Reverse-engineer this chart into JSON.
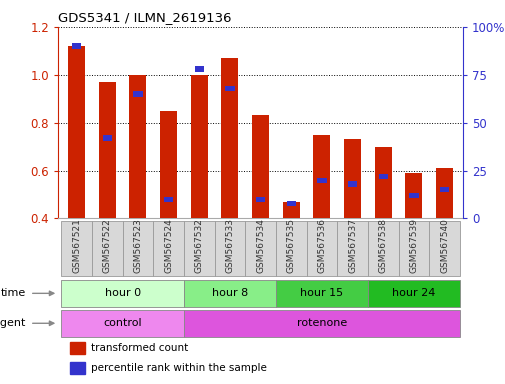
{
  "title": "GDS5341 / ILMN_2619136",
  "samples": [
    "GSM567521",
    "GSM567522",
    "GSM567523",
    "GSM567524",
    "GSM567532",
    "GSM567533",
    "GSM567534",
    "GSM567535",
    "GSM567536",
    "GSM567537",
    "GSM567538",
    "GSM567539",
    "GSM567540"
  ],
  "transformed_count": [
    1.12,
    0.97,
    1.0,
    0.85,
    1.0,
    1.07,
    0.83,
    0.47,
    0.75,
    0.73,
    0.7,
    0.59,
    0.61
  ],
  "percentile_rank": [
    90,
    42,
    65,
    10,
    78,
    68,
    10,
    8,
    20,
    18,
    22,
    12,
    15
  ],
  "bar_bottom": 0.4,
  "ylim_left": [
    0.4,
    1.2
  ],
  "ylim_right": [
    0,
    100
  ],
  "yticks_left": [
    0.4,
    0.6,
    0.8,
    1.0,
    1.2
  ],
  "yticks_right": [
    0,
    25,
    50,
    75,
    100
  ],
  "bar_color_red": "#cc2200",
  "bar_color_blue": "#3333cc",
  "time_groups": [
    {
      "label": "hour 0",
      "start": 0,
      "end": 4,
      "color": "#ccffcc"
    },
    {
      "label": "hour 8",
      "start": 4,
      "end": 7,
      "color": "#88ee88"
    },
    {
      "label": "hour 15",
      "start": 7,
      "end": 10,
      "color": "#44cc44"
    },
    {
      "label": "hour 24",
      "start": 10,
      "end": 13,
      "color": "#22bb22"
    }
  ],
  "agent_groups": [
    {
      "label": "control",
      "start": 0,
      "end": 4,
      "color": "#ee88ee"
    },
    {
      "label": "rotenone",
      "start": 4,
      "end": 13,
      "color": "#dd55dd"
    }
  ],
  "bg_color": "#ffffff",
  "left_axis_color": "#cc2200",
  "right_axis_color": "#3333cc",
  "xtick_bg_color": "#d8d8d8",
  "xtick_border_color": "#999999"
}
